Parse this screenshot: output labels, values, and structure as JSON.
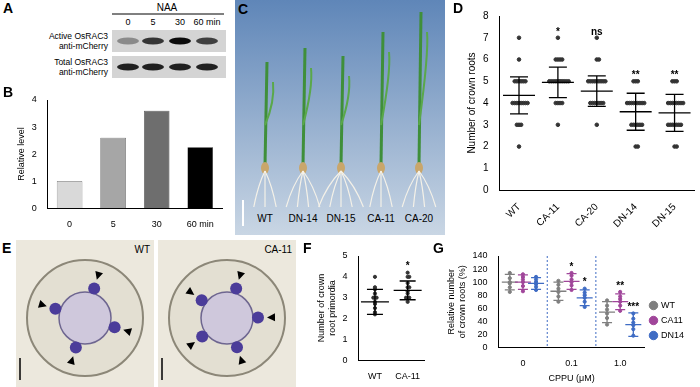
{
  "figure": {
    "blot": {
      "panel_label": "A",
      "header": "NAA",
      "lanes": [
        "0",
        "5",
        "30",
        "60 min"
      ],
      "rows": [
        [
          "Active OsRAC3",
          "anti-mCherry"
        ],
        [
          "Total OsRAC3",
          "anti-mCherry"
        ]
      ]
    },
    "seedlings": {
      "panel_label": "C",
      "labels": [
        "WT",
        "DN-14",
        "DN-15",
        "CA-11",
        "CA-20"
      ]
    },
    "sections": {
      "panel_label": "E",
      "labels": [
        "WT",
        "CA-11"
      ]
    }
  },
  "chart_data": [
    {
      "panel_label": "B",
      "type": "bar",
      "categories": [
        "0",
        "5",
        "30",
        "60 min"
      ],
      "values": [
        1,
        2.6,
        3.6,
        2.25
      ],
      "colors": [
        "#d9d9d9",
        "#a6a6a6",
        "#6e6e6e",
        "#000000"
      ],
      "y_label": "Relative level",
      "ylim": [
        0,
        4
      ],
      "yticks": [
        0,
        1,
        2,
        3,
        4
      ],
      "grid": false
    },
    {
      "panel_label": "D",
      "type": "scatter",
      "y_label": "Number of crown roots",
      "categories": [
        "WT",
        "CA-11",
        "CA-20",
        "DN-14",
        "DN-15"
      ],
      "ylim": [
        0,
        8
      ],
      "yticks": [
        0,
        1,
        2,
        3,
        4,
        5,
        6,
        7,
        8
      ],
      "grid": false,
      "series": [
        {
          "color": "#333333",
          "values": [
            4.35,
            4.95,
            4.55,
            3.6,
            3.55
          ],
          "errors": [
            0.85,
            0.7,
            0.7,
            0.85,
            0.85
          ],
          "points": [
            [
              2,
              3,
              3,
              3,
              4,
              4,
              4,
              4,
              4,
              4,
              4,
              4,
              5,
              5,
              5,
              5,
              5,
              5,
              6,
              7
            ],
            [
              3,
              4,
              4,
              4,
              4,
              5,
              5,
              5,
              5,
              5,
              5,
              5,
              5,
              5,
              5,
              6,
              6,
              6,
              6,
              7
            ],
            [
              3,
              4,
              4,
              4,
              4,
              4,
              4,
              4,
              5,
              5,
              5,
              5,
              5,
              5,
              5,
              5,
              5,
              6,
              6,
              7
            ],
            [
              2,
              2,
              3,
              3,
              3,
              3,
              3,
              3,
              4,
              4,
              4,
              4,
              4,
              4,
              4,
              4,
              4,
              5,
              5,
              5
            ],
            [
              2,
              2,
              3,
              3,
              3,
              3,
              3,
              3,
              3,
              4,
              4,
              4,
              4,
              4,
              4,
              4,
              4,
              5,
              5,
              5
            ]
          ],
          "annotations": [
            null,
            "*",
            "ns",
            "**",
            "**"
          ]
        }
      ]
    },
    {
      "panel_label": "F",
      "type": "scatter",
      "y_label": "Number of crown root primordia",
      "categories": [
        "WT",
        "CA-11"
      ],
      "ylim": [
        0,
        5
      ],
      "yticks": [
        0,
        1,
        2,
        3,
        4,
        5
      ],
      "grid": false,
      "series": [
        {
          "color": "#333333",
          "values": [
            2.8,
            3.35
          ],
          "errors": [
            0.6,
            0.45
          ],
          "points": [
            [
              2.2,
              2.3,
              2.5,
              2.7,
              2.8,
              3,
              3,
              3,
              3.2,
              3.4,
              3.5,
              4
            ],
            [
              2.8,
              3,
              3,
              3,
              3.2,
              3.3,
              3.5,
              3.5,
              3.7,
              4,
              4,
              4.2
            ]
          ],
          "annotations": [
            null,
            "*"
          ]
        }
      ]
    },
    {
      "panel_label": "G",
      "type": "scatter",
      "y_label": "Relative number of crown roots (%)",
      "x_label": "CPPU (μM)",
      "categories": [
        "0",
        "0.1",
        "1.0"
      ],
      "ylim": [
        0,
        140
      ],
      "yticks": [
        0,
        20,
        40,
        60,
        80,
        100,
        120,
        140
      ],
      "grid": false,
      "legend": "right",
      "series": [
        {
          "name": "WT",
          "color": "#7f7f7f",
          "values": [
            100,
            86,
            54
          ],
          "errors": [
            12,
            14,
            16
          ],
          "points": [
            [
              85,
              92,
              98,
              100,
              106,
              114
            ],
            [
              70,
              78,
              85,
              90,
              96,
              102
            ],
            [
              35,
              45,
              52,
              58,
              64,
              72
            ]
          ],
          "annotations": [
            null,
            null,
            null
          ]
        },
        {
          "name": "CA11",
          "color": "#a0469a",
          "values": [
            100,
            101,
            70
          ],
          "errors": [
            11,
            12,
            12
          ],
          "points": [
            [
              86,
              94,
              100,
              104,
              108,
              112
            ],
            [
              88,
              95,
              100,
              104,
              110,
              114
            ],
            [
              56,
              64,
              70,
              74,
              78,
              85
            ]
          ],
          "annotations": [
            null,
            "*",
            "**"
          ]
        },
        {
          "name": "DN14",
          "color": "#3f6cc4",
          "values": [
            98,
            76,
            35
          ],
          "errors": [
            9,
            12,
            18
          ],
          "points": [
            [
              88,
              93,
              97,
              100,
              104,
              108
            ],
            [
              62,
              70,
              76,
              80,
              84,
              90
            ],
            [
              18,
              28,
              34,
              38,
              44,
              52
            ]
          ],
          "annotations": [
            null,
            "*",
            "***"
          ]
        }
      ]
    }
  ]
}
